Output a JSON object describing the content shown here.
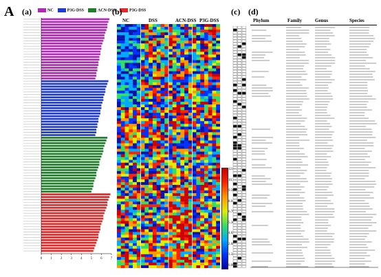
{
  "figure": {
    "main_label": "A",
    "panels": {
      "a": {
        "label": "(a)"
      },
      "b": {
        "label": "(b)"
      },
      "c": {
        "label": "(c)"
      },
      "d": {
        "label": "(d)"
      }
    }
  },
  "legend": {
    "groups": [
      {
        "name": "NC",
        "color": "#b02ab5"
      },
      {
        "name": "P3G-DSS",
        "color": "#1f3ccf"
      },
      {
        "name": "ACN-DSS",
        "color": "#1f7f2a"
      },
      {
        "name": "P3G-DSS",
        "color": "#e32a2a"
      }
    ]
  },
  "chart_data": {
    "type": "bar",
    "title": "",
    "xlabel": "",
    "ylabel": "",
    "xlim": [
      0,
      7
    ],
    "x_ticks": [
      "0",
      "1",
      "2",
      "3",
      "4",
      "5",
      "6",
      "7"
    ],
    "series": [
      {
        "name": "NC",
        "color": "#b02ab5",
        "values": [
          6.8,
          6.7,
          6.6,
          6.6,
          6.5,
          6.4,
          6.3,
          6.3,
          6.2,
          6.1,
          6.0,
          6.0,
          5.9,
          5.9,
          5.8,
          5.8,
          5.7,
          5.7,
          5.6,
          5.6,
          5.5,
          5.5,
          5.4
        ]
      },
      {
        "name": "P3G-DSS",
        "color": "#1f3ccf",
        "values": [
          6.7,
          6.6,
          6.5,
          6.4,
          6.4,
          6.3,
          6.2,
          6.2,
          6.1,
          6.0,
          6.0,
          5.9,
          5.9,
          5.8,
          5.7,
          5.7,
          5.6,
          5.6,
          5.5,
          5.5,
          5.4
        ]
      },
      {
        "name": "ACN-DSS",
        "color": "#1f7f2a",
        "values": [
          6.6,
          6.5,
          6.4,
          6.3,
          6.2,
          6.2,
          6.1,
          6.0,
          5.9,
          5.8,
          5.8,
          5.7,
          5.6,
          5.5,
          5.5,
          5.4,
          5.3,
          5.2,
          5.2,
          5.1,
          5.0
        ]
      },
      {
        "name": "P3G-DSS",
        "color": "#e32a2a",
        "values": [
          6.9,
          6.8,
          6.7,
          6.6,
          6.6,
          6.5,
          6.4,
          6.3,
          6.2,
          6.2,
          6.1,
          6.0,
          5.9,
          5.9,
          5.8,
          5.7,
          5.7,
          5.6,
          5.5,
          5.4,
          5.3,
          5.2
        ]
      }
    ]
  },
  "heatmap": {
    "column_groups": [
      "NC",
      "DSS",
      "ACN-DSS",
      "P3G-DSS"
    ],
    "colorbar_ticks": [
      "12.05",
      "10.71",
      "9.38",
      "8.04",
      "6.70",
      "5.36",
      "4.02",
      "2.68",
      "1.34",
      "0.00"
    ],
    "colors": [
      "#0a12a8",
      "#0033ff",
      "#00aaff",
      "#33dd66",
      "#ddee00",
      "#ff9900",
      "#ff2200",
      "#cc0000"
    ]
  },
  "table": {
    "headers": [
      "Phylum",
      "Family",
      "Genus",
      "Species"
    ]
  }
}
